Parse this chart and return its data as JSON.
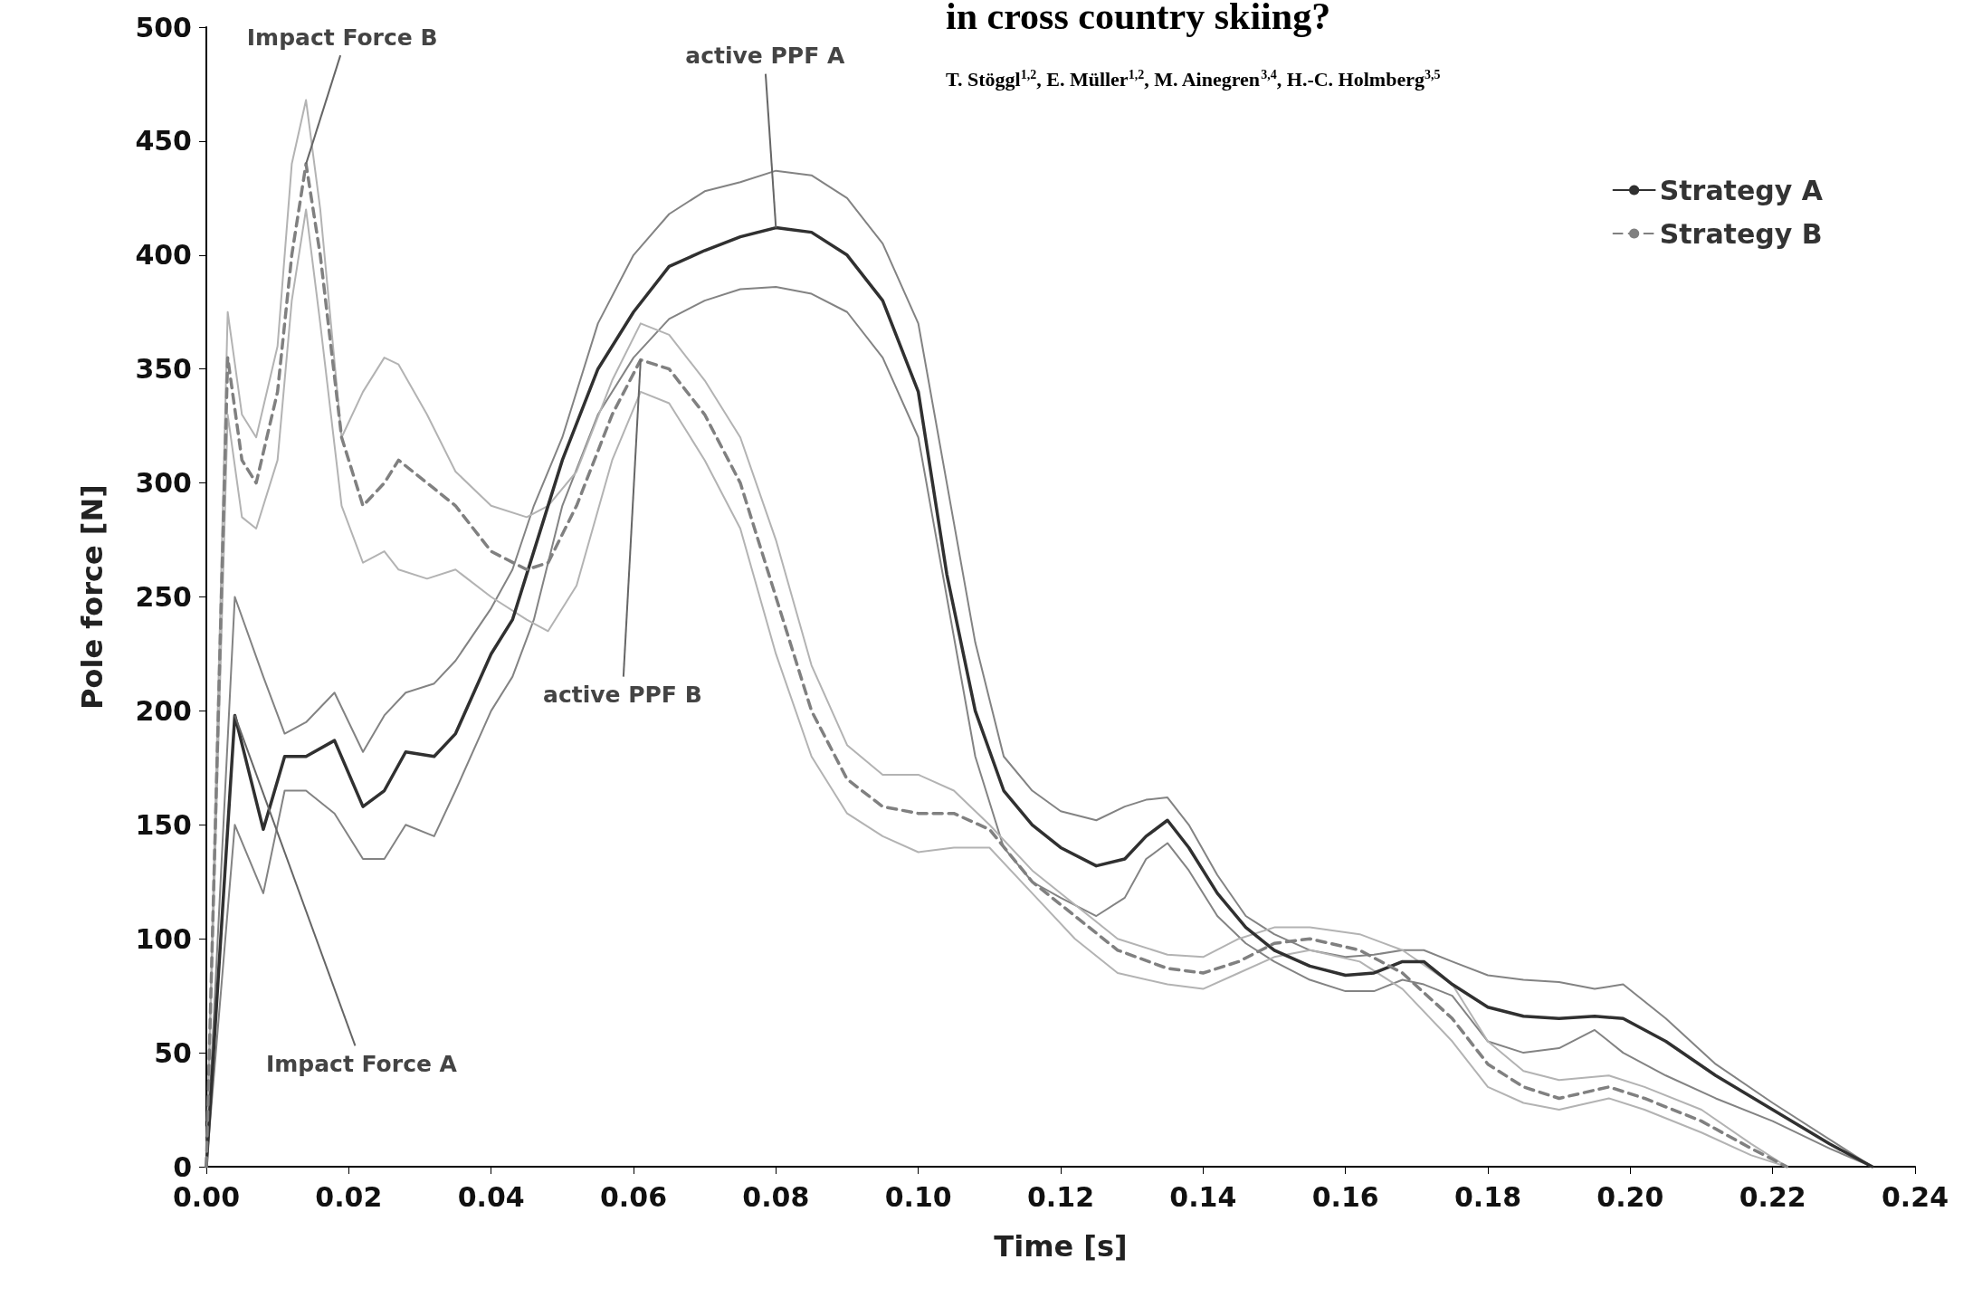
{
  "chart_data": {
    "type": "line",
    "title": "in cross country skiing?",
    "subtitle": "T. Stöggl$^{1,2}$, E. Müller$^{1,2}$, M. Ainegren$^{3,4}$, H.-C. Holmberg$^{3,5}$",
    "xlabel": "Time [s]",
    "ylabel": "Pole force [N]",
    "xlim": [
      0,
      0.24
    ],
    "xticks": [
      {
        "value": 0,
        "label": "0.00"
      },
      {
        "value": 0.02,
        "label": "0.02"
      },
      {
        "value": 0.04,
        "label": "0.04"
      },
      {
        "value": 0.06,
        "label": "0.06"
      },
      {
        "value": 0.08,
        "label": "0.08"
      },
      {
        "value": 0.1,
        "label": "0.10"
      },
      {
        "value": 0.12,
        "label": "0.12"
      },
      {
        "value": 0.14,
        "label": "0.14"
      },
      {
        "value": 0.16,
        "label": "0.16"
      },
      {
        "value": 0.18,
        "label": "0.18"
      },
      {
        "value": 0.2,
        "label": "0.20"
      },
      {
        "value": 0.22,
        "label": "0.22"
      },
      {
        "value": 0.24,
        "label": "0.24"
      }
    ],
    "ylim": [
      0,
      500
    ],
    "yticks": [
      0,
      50,
      100,
      150,
      200,
      250,
      300,
      350,
      400,
      450,
      500
    ],
    "grid": false,
    "legend": "top right",
    "marker": "none",
    "annotations": [
      {
        "text": "Impact Force B",
        "x": 0.014,
        "y": 440
      },
      {
        "text": "active PPF A",
        "x": 0.08,
        "y": 412
      },
      {
        "text": "active PPF B",
        "x": 0.061,
        "y": 354
      },
      {
        "text": "Impact Force A",
        "x": 0.004,
        "y": 198
      }
    ],
    "series": [
      {
        "color": "#838383",
        "line_style": "solid",
        "x": [
          0,
          0.004,
          0.008,
          0.011,
          0.014,
          0.018,
          0.022,
          0.025,
          0.028,
          0.032,
          0.035,
          0.04,
          0.043,
          0.046,
          0.05,
          0.055,
          0.06,
          0.065,
          0.07,
          0.075,
          0.08,
          0.085,
          0.09,
          0.095,
          0.1,
          0.104,
          0.108,
          0.112,
          0.116,
          0.12,
          0.125,
          0.129,
          0.132,
          0.135,
          0.138,
          0.142,
          0.146,
          0.15,
          0.155,
          0.16,
          0.164,
          0.168,
          0.171,
          0.175,
          0.18,
          0.185,
          0.19,
          0.195,
          0.199,
          0.205,
          0.212,
          0.22,
          0.228,
          0.234
        ],
        "values": [
          0,
          250,
          215,
          190,
          195,
          208,
          182,
          198,
          208,
          212,
          222,
          245,
          262,
          290,
          320,
          370,
          400,
          418,
          428,
          432,
          437,
          435,
          425,
          405,
          370,
          300,
          230,
          180,
          165,
          156,
          152,
          158,
          161,
          162,
          150,
          128,
          110,
          102,
          95,
          92,
          93,
          95,
          95,
          90,
          84,
          82,
          81,
          78,
          80,
          65,
          45,
          28,
          12,
          0
        ]
      },
      {
        "color": "#838383",
        "line_style": "solid",
        "x": [
          0,
          0.004,
          0.008,
          0.011,
          0.014,
          0.018,
          0.022,
          0.025,
          0.028,
          0.032,
          0.035,
          0.04,
          0.043,
          0.046,
          0.05,
          0.055,
          0.06,
          0.065,
          0.07,
          0.075,
          0.08,
          0.085,
          0.09,
          0.095,
          0.1,
          0.104,
          0.108,
          0.112,
          0.116,
          0.12,
          0.125,
          0.129,
          0.132,
          0.135,
          0.138,
          0.142,
          0.146,
          0.15,
          0.155,
          0.16,
          0.164,
          0.168,
          0.171,
          0.175,
          0.18,
          0.185,
          0.19,
          0.195,
          0.199,
          0.205,
          0.212,
          0.22,
          0.228,
          0.234
        ],
        "values": [
          0,
          150,
          120,
          165,
          165,
          155,
          135,
          135,
          150,
          145,
          165,
          200,
          215,
          240,
          290,
          330,
          355,
          372,
          380,
          385,
          386,
          383,
          375,
          355,
          320,
          250,
          180,
          140,
          125,
          118,
          110,
          118,
          135,
          142,
          130,
          110,
          98,
          90,
          82,
          77,
          77,
          82,
          80,
          75,
          55,
          50,
          52,
          60,
          50,
          40,
          30,
          20,
          8,
          0
        ]
      },
      {
        "color": "#b3b3b3",
        "line_style": "solid",
        "x": [
          0,
          0.003,
          0.005,
          0.007,
          0.01,
          0.012,
          0.014,
          0.016,
          0.019,
          0.022,
          0.025,
          0.027,
          0.031,
          0.035,
          0.04,
          0.045,
          0.048,
          0.052,
          0.057,
          0.061,
          0.065,
          0.07,
          0.075,
          0.08,
          0.085,
          0.09,
          0.095,
          0.1,
          0.105,
          0.11,
          0.116,
          0.122,
          0.128,
          0.135,
          0.14,
          0.145,
          0.15,
          0.155,
          0.162,
          0.168,
          0.175,
          0.18,
          0.185,
          0.19,
          0.197,
          0.202,
          0.21,
          0.217,
          0.222
        ],
        "values": [
          0,
          375,
          330,
          320,
          360,
          440,
          468,
          420,
          320,
          340,
          355,
          352,
          330,
          305,
          290,
          285,
          290,
          305,
          345,
          370,
          365,
          345,
          320,
          275,
          220,
          185,
          172,
          172,
          165,
          150,
          130,
          115,
          100,
          93,
          92,
          100,
          105,
          105,
          102,
          95,
          80,
          55,
          42,
          38,
          40,
          35,
          25,
          10,
          0
        ]
      },
      {
        "color": "#b3b3b3",
        "line_style": "solid",
        "x": [
          0,
          0.003,
          0.005,
          0.007,
          0.01,
          0.012,
          0.014,
          0.016,
          0.019,
          0.022,
          0.025,
          0.027,
          0.031,
          0.035,
          0.04,
          0.045,
          0.048,
          0.052,
          0.057,
          0.061,
          0.065,
          0.07,
          0.075,
          0.08,
          0.085,
          0.09,
          0.095,
          0.1,
          0.105,
          0.11,
          0.116,
          0.122,
          0.128,
          0.135,
          0.14,
          0.145,
          0.15,
          0.155,
          0.162,
          0.168,
          0.175,
          0.18,
          0.185,
          0.19,
          0.197,
          0.202,
          0.21,
          0.217,
          0.222
        ],
        "values": [
          0,
          330,
          285,
          280,
          310,
          380,
          420,
          370,
          290,
          265,
          270,
          262,
          258,
          262,
          250,
          240,
          235,
          255,
          310,
          340,
          335,
          310,
          280,
          225,
          180,
          155,
          145,
          138,
          140,
          140,
          120,
          100,
          85,
          80,
          78,
          85,
          92,
          95,
          90,
          78,
          55,
          35,
          28,
          25,
          30,
          25,
          15,
          5,
          0
        ]
      },
      {
        "name": "Strategy A",
        "color": "#303030",
        "line_style": "solid",
        "x": [
          0,
          0.004,
          0.008,
          0.011,
          0.014,
          0.018,
          0.022,
          0.025,
          0.028,
          0.032,
          0.035,
          0.04,
          0.043,
          0.046,
          0.05,
          0.055,
          0.06,
          0.065,
          0.07,
          0.075,
          0.08,
          0.085,
          0.09,
          0.095,
          0.1,
          0.104,
          0.108,
          0.112,
          0.116,
          0.12,
          0.125,
          0.129,
          0.132,
          0.135,
          0.138,
          0.142,
          0.146,
          0.15,
          0.155,
          0.16,
          0.164,
          0.168,
          0.171,
          0.175,
          0.18,
          0.185,
          0.19,
          0.195,
          0.199,
          0.205,
          0.212,
          0.22,
          0.228,
          0.234
        ],
        "values": [
          0,
          198,
          148,
          180,
          180,
          187,
          158,
          165,
          182,
          180,
          190,
          225,
          240,
          270,
          310,
          350,
          375,
          395,
          402,
          408,
          412,
          410,
          400,
          380,
          340,
          260,
          200,
          165,
          150,
          140,
          132,
          135,
          145,
          152,
          140,
          120,
          105,
          95,
          88,
          84,
          85,
          90,
          90,
          80,
          70,
          66,
          65,
          66,
          65,
          55,
          40,
          25,
          10,
          0
        ]
      },
      {
        "name": "Strategy B",
        "color": "#808080",
        "line_style": "dashed",
        "x": [
          0,
          0.003,
          0.005,
          0.007,
          0.01,
          0.012,
          0.014,
          0.016,
          0.019,
          0.022,
          0.025,
          0.027,
          0.031,
          0.035,
          0.04,
          0.045,
          0.048,
          0.052,
          0.057,
          0.061,
          0.065,
          0.07,
          0.075,
          0.08,
          0.085,
          0.09,
          0.095,
          0.1,
          0.105,
          0.11,
          0.116,
          0.122,
          0.128,
          0.135,
          0.14,
          0.145,
          0.15,
          0.155,
          0.162,
          0.168,
          0.175,
          0.18,
          0.185,
          0.19,
          0.197,
          0.202,
          0.21,
          0.217,
          0.222
        ],
        "values": [
          0,
          355,
          310,
          300,
          340,
          400,
          440,
          400,
          320,
          290,
          300,
          310,
          300,
          290,
          270,
          262,
          265,
          290,
          330,
          354,
          350,
          330,
          300,
          250,
          200,
          170,
          158,
          155,
          155,
          148,
          125,
          110,
          95,
          87,
          85,
          90,
          98,
          100,
          95,
          85,
          65,
          45,
          35,
          30,
          35,
          30,
          20,
          8,
          0
        ]
      }
    ]
  }
}
